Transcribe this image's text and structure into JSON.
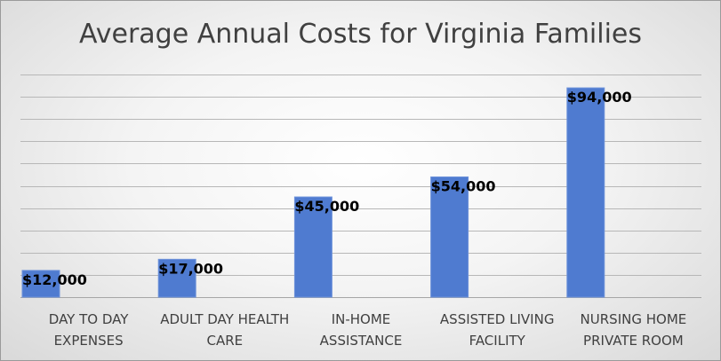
{
  "chart_data": {
    "type": "bar",
    "title": "Average Annual Costs for Virginia Families",
    "categories": [
      [
        "DAY TO DAY",
        "EXPENSES"
      ],
      [
        "ADULT DAY HEALTH",
        "CARE"
      ],
      [
        "IN-HOME",
        "ASSISTANCE"
      ],
      [
        "ASSISTED LIVING",
        "FACILITY"
      ],
      [
        "NURSING HOME",
        "PRIVATE ROOM"
      ]
    ],
    "values": [
      12000,
      17000,
      45000,
      54000,
      94000
    ],
    "data_labels": [
      "$12,000",
      "$17,000",
      "$45,000",
      "$54,000",
      "$94,000"
    ],
    "xlabel": "",
    "ylabel": "",
    "ylim": [
      0,
      100000
    ],
    "grid": true,
    "legend": "none",
    "colors": {
      "bar": "#4f7bd0",
      "grid": "#b7b7b7"
    }
  }
}
